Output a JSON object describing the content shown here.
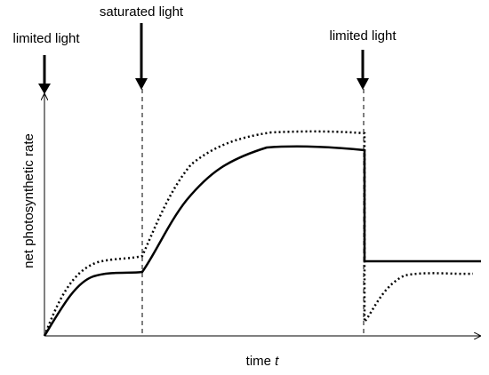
{
  "annotations": [
    "limited light",
    "saturated light",
    "limited light"
  ],
  "y_label": "net photosynthetic rate",
  "x_label": {
    "text": "time",
    "variable": "t"
  }
}
